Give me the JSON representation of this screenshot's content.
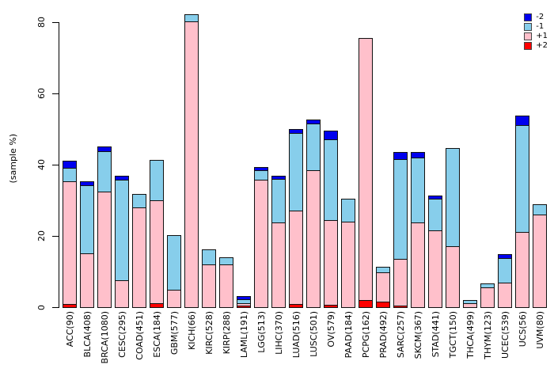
{
  "chart_data": {
    "type": "bar",
    "stacked": true,
    "title": "",
    "xlabel": "",
    "ylabel": "(sample %)",
    "ylim": [
      0,
      80
    ],
    "yticks": [
      0,
      20,
      40,
      60,
      80
    ],
    "grid": false,
    "legend": {
      "position": "top-right",
      "entries": [
        {
          "label": "-2",
          "color": "#0000EE"
        },
        {
          "label": "-1",
          "color": "#87CEEB"
        },
        {
          "label": "+1",
          "color": "#FFC0CB"
        },
        {
          "label": "+2",
          "color": "#FF0000"
        }
      ]
    },
    "categories": [
      "ACC(90)",
      "BLCA(408)",
      "BRCA(1080)",
      "CESC(295)",
      "COAD(451)",
      "ESCA(184)",
      "GBM(577)",
      "KICH(66)",
      "KIRC(528)",
      "KIRP(288)",
      "LAML(191)",
      "LGG(513)",
      "LIHC(370)",
      "LUAD(516)",
      "LUSC(501)",
      "OV(579)",
      "PAAD(184)",
      "PCPG(162)",
      "PRAD(492)",
      "SARC(257)",
      "SKCM(367)",
      "STAD(441)",
      "TGCT(150)",
      "THCA(499)",
      "THYM(123)",
      "UCEC(539)",
      "UCS(56)",
      "UVM(80)"
    ],
    "stack_order_bottom_to_top": [
      "+2",
      "+1",
      "-1",
      "-2"
    ],
    "series": [
      {
        "name": "+2",
        "color": "#FF0000",
        "values": [
          0.9,
          0,
          0,
          0,
          0,
          1.0,
          0,
          0,
          0,
          0,
          0.5,
          0,
          0,
          0.9,
          0,
          0.6,
          0,
          1.9,
          1.6,
          0.5,
          0,
          0,
          0,
          0,
          0,
          0,
          0,
          0
        ]
      },
      {
        "name": "+1",
        "color": "#FFC0CB",
        "values": [
          34.4,
          15.0,
          32.4,
          7.5,
          28.0,
          29.0,
          5.0,
          80.3,
          12.1,
          12.0,
          0.5,
          35.7,
          23.7,
          26.3,
          38.4,
          23.8,
          24.1,
          73.5,
          8.1,
          13.1,
          23.7,
          21.5,
          17.1,
          1.2,
          5.5,
          6.8,
          21.0,
          26.1
        ]
      },
      {
        "name": "-1",
        "color": "#87CEEB",
        "values": [
          3.9,
          19.2,
          11.4,
          28.2,
          3.5,
          11.1,
          15.0,
          1.8,
          3.9,
          1.8,
          1.2,
          2.7,
          12.4,
          21.7,
          13.1,
          22.7,
          6.2,
          0,
          1.5,
          28.0,
          18.4,
          9.0,
          27.4,
          0.6,
          1.0,
          7.0,
          30.2,
          2.5
        ]
      },
      {
        "name": "-2",
        "color": "#0000EE",
        "values": [
          1.6,
          1.0,
          1.2,
          0.9,
          0,
          0,
          0,
          0,
          0,
          0,
          0.6,
          0.8,
          0.5,
          0.8,
          0.9,
          2.2,
          0,
          0,
          0,
          1.7,
          1.2,
          0.6,
          0,
          0,
          0,
          0.9,
          2.4,
          0
        ]
      }
    ],
    "totals": [
      40.8,
      35.2,
      45.0,
      36.6,
      31.5,
      41.1,
      20.0,
      82.1,
      16.0,
      13.8,
      2.8,
      39.2,
      36.6,
      49.7,
      52.4,
      49.3,
      30.3,
      75.4,
      11.2,
      43.3,
      43.3,
      31.1,
      44.5,
      1.8,
      6.5,
      14.7,
      53.6,
      28.6
    ]
  }
}
